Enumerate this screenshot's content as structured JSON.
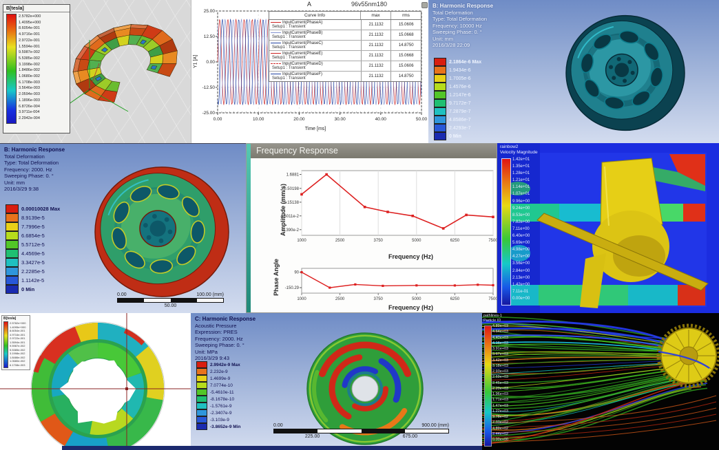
{
  "panels": {
    "maxwell_torus": {
      "legend_title": "B[tesla]",
      "values": [
        "2.5782e+000",
        "1.4095e+000",
        "8.6054e-001",
        "4.9716e-001",
        "2.9722e-001",
        "1.5594e-001",
        "9.5987e-002",
        "5.5385e-002",
        "3.1998e-002",
        "1.8486e-002",
        "1.0680e-002",
        "6.1708e-003",
        "3.5646e-003",
        "2.0594e-003",
        "1.1896e-003",
        "6.8726e-004",
        "3.9711e-004",
        "2.2942e-004"
      ]
    },
    "current_plot": {
      "corner_label": "A",
      "title": "96v55nm180",
      "ylabel": "Y1 [A]",
      "xlabel": "Time [ms]",
      "y_ticks": [
        "25.00",
        "12.50",
        "0.00",
        "-12.50",
        "-25.00"
      ],
      "x_ticks": [
        "0.00",
        "10.00",
        "20.00",
        "30.00",
        "40.00",
        "50.00"
      ],
      "legend_headers": [
        "Curve Info",
        "max",
        "rms"
      ],
      "rows": [
        {
          "name": "InputCurrent(PhaseA)",
          "setup": "Setup1 : Transient",
          "max": "21.1132",
          "rms": "15.0606",
          "color": "#cc2222",
          "dash": false
        },
        {
          "name": "InputCurrent(PhaseB)",
          "setup": "Setup1 : Transient",
          "max": "21.1132",
          "rms": "15.0668",
          "color": "#8090d0",
          "dash": false
        },
        {
          "name": "InputCurrent(PhaseC)",
          "setup": "Setup1 : Transient",
          "max": "21.1132",
          "rms": "14.8750",
          "color": "#1e3fa0",
          "dash": false
        },
        {
          "name": "InputCurrent(PhaseE)",
          "setup": "Setup1 : Transient",
          "max": "21.1132",
          "rms": "15.0668",
          "color": "#cc2222",
          "dash": false
        },
        {
          "name": "InputCurrent(PhaseD)",
          "setup": "Setup1 : Transient",
          "max": "21.1132",
          "rms": "15.0606",
          "color": "#cc2222",
          "dash": true
        },
        {
          "name": "InputCurrent(PhaseF)",
          "setup": "Setup1 : Transient",
          "max": "21.1132",
          "rms": "14.8750",
          "color": "#1e3fa0",
          "dash": false
        }
      ]
    },
    "harmonic_top_right": {
      "info": [
        "B: Harmonic Response",
        "Total Deformation",
        "Type: Total Deformation",
        "Frequency: 10000 Hz",
        "Sweeping Phase: 0. °",
        "Unit: mm",
        "2016/3/28 22:09"
      ],
      "legend": [
        "2.1864e-6 Max",
        "1.9434e-6",
        "1.7005e-6",
        "1.4576e-6",
        "1.2147e-6",
        "9.7172e-7",
        "7.2879e-7",
        "4.8586e-7",
        "2.4293e-7",
        "0 Min"
      ]
    },
    "harmonic_mid_left": {
      "info": [
        "B: Harmonic Response",
        "Total Deformation",
        "Type: Total Deformation",
        "Frequency: 2000. Hz",
        "Sweeping Phase: 0. °",
        "Unit: mm",
        "2016/3/29 9:38"
      ],
      "legend": [
        "0.00010028 Max",
        "8.9139e-5",
        "7.7996e-5",
        "6.6854e-5",
        "5.5712e-5",
        "4.4569e-5",
        "3.3427e-5",
        "2.2285e-5",
        "1.1142e-5",
        "0 Min"
      ],
      "scale": {
        "left": "0.00",
        "right": "100.00 (mm)",
        "mid": "50.00"
      }
    },
    "freq_response": {
      "window_title": "Frequency Response",
      "amp_ylabel": "Amplitude (mm/s)",
      "amp_yticks": [
        "1.6881",
        "0.50198",
        "0.15138",
        "4.6011e-2",
        "1.390e-2"
      ],
      "x_ticks": [
        "1000",
        "2500",
        "3750",
        "5000",
        "6250",
        "7500"
      ],
      "xlabel": "Frequency (Hz)",
      "phase_ylabel": "Phase Angle",
      "phase_yticks": [
        "90",
        "-150.29"
      ]
    },
    "cfd": {
      "legend_title_1": "rainbow2",
      "legend_title_2": "Velocity Magnitude",
      "values": [
        "1.42e+01",
        "1.35e+01",
        "1.28e+01",
        "1.21e+01",
        "1.14e+01",
        "1.07e+01",
        "9.96e+00",
        "9.24e+00",
        "8.53e+00",
        "7.82e+00",
        "7.11e+00",
        "6.40e+00",
        "5.69e+00",
        "4.98e+00",
        "4.27e+00",
        "3.56e+00",
        "2.84e+00",
        "2.13e+00",
        "1.42e+00",
        "7.11e-01",
        "0.00e+00"
      ]
    },
    "maxwell_ring": {
      "legend_title": "B[tesla]"
    },
    "acoustic": {
      "info": [
        "C: Harmonic Response",
        "Acoustic Pressure",
        "Expression: PRES",
        "Frequency: 2000. Hz",
        "Sweeping Phase: 0. °",
        "Unit: MPa",
        "2016/3/29 9:43"
      ],
      "legend": [
        "2.9942e-9 Max",
        "2.232e-9",
        "1.4699e-9",
        "7.0774e-10",
        "-5.4610e-11",
        "-8.1678e-10",
        "-1.5761e-9",
        "-2.3407e-9",
        "-3.103e-9",
        "-3.8652e-9 Min"
      ],
      "scale": {
        "left": "0.00",
        "right": "900.00 (mm)",
        "q1": "225.00",
        "q3": "675.00"
      }
    },
    "pathlines": {
      "legend_title_1": "pathlines-1",
      "legend_title_2": "Particle ID",
      "values": [
        "4.89e+03",
        "4.64e+03",
        "4.40e+03",
        "4.16e+03",
        "3.91e+03",
        "3.67e+03",
        "3.42e+03",
        "3.18e+03",
        "2.93e+03",
        "2.69e+03",
        "2.45e+03",
        "2.20e+03",
        "1.96e+03",
        "1.71e+03",
        "1.47e+03",
        "1.22e+03",
        "9.78e+02",
        "7.33e+02",
        "4.89e+02",
        "2.44e+02",
        "0.00e+00"
      ]
    }
  },
  "ansys_legend_colors": [
    "#d81e10",
    "#e8731c",
    "#e8d018",
    "#b6dc1c",
    "#52c628",
    "#1fbf72",
    "#1fc0c0",
    "#2f96dc",
    "#2858d8",
    "#1a2bb0"
  ],
  "chart_data": [
    {
      "type": "line",
      "title": "96v55nm180",
      "xlabel": "Time [ms]",
      "ylabel": "Y1 [A]",
      "xlim": [
        0,
        50
      ],
      "ylim": [
        -25,
        25
      ],
      "waveform": "sinusoid",
      "amplitude": 21.1132,
      "period_ms": 2,
      "series": [
        {
          "name": "InputCurrent(PhaseA)",
          "max": 21.1132,
          "rms": 15.0606
        },
        {
          "name": "InputCurrent(PhaseB)",
          "max": 21.1132,
          "rms": 15.0668
        },
        {
          "name": "InputCurrent(PhaseC)",
          "max": 21.1132,
          "rms": 14.875
        },
        {
          "name": "InputCurrent(PhaseE)",
          "max": 21.1132,
          "rms": 15.0668
        },
        {
          "name": "InputCurrent(PhaseD)",
          "max": 21.1132,
          "rms": 15.0606
        },
        {
          "name": "InputCurrent(PhaseF)",
          "max": 21.1132,
          "rms": 14.875
        }
      ]
    },
    {
      "type": "line",
      "title": "Frequency Response - Amplitude",
      "xlabel": "Frequency (Hz)",
      "ylabel": "Amplitude (mm/s)",
      "yscale": "log",
      "yticks": [
        1.6881,
        0.50198,
        0.15138,
        0.046011,
        0.0139
      ],
      "x": [
        1000,
        1975,
        3310,
        4060,
        4875,
        5875,
        6625,
        7500
      ],
      "y": [
        0.3,
        1.6881,
        0.1,
        0.065,
        0.046,
        0.0155,
        0.05,
        0.042
      ]
    },
    {
      "type": "line",
      "title": "Frequency Response - Phase",
      "xlabel": "Frequency (Hz)",
      "ylabel": "Phase Angle",
      "yticks": [
        90,
        -150.29
      ],
      "x": [
        1000,
        2100,
        3000,
        3900,
        5000,
        6250,
        7000,
        7500
      ],
      "y": [
        90,
        -150,
        -100,
        -122,
        -115,
        -116,
        -105,
        -112
      ]
    }
  ]
}
